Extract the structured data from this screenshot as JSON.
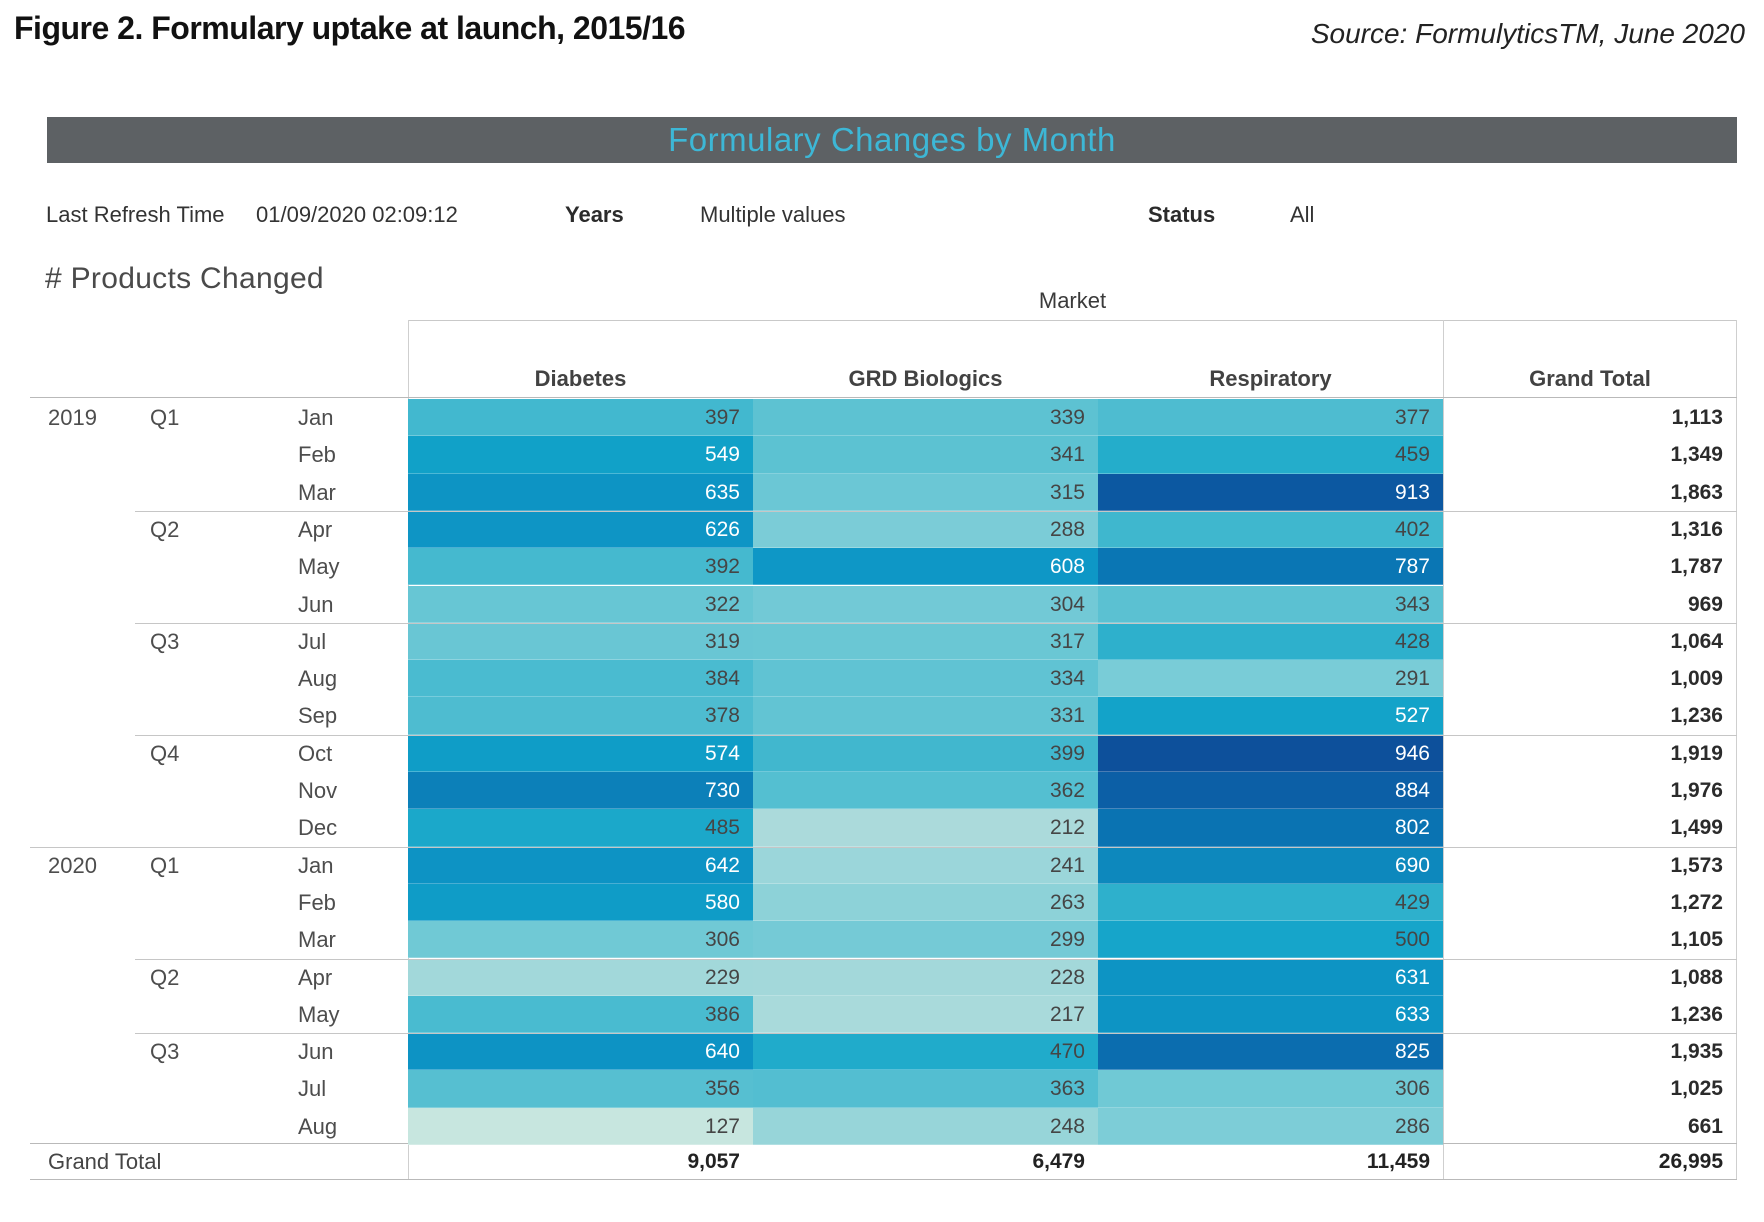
{
  "figure": {
    "title": "Figure 2. Formulary uptake at launch, 2015/16",
    "source": "Source: FormulyticsTM, June 2020"
  },
  "banner": {
    "title": "Formulary Changes by Month",
    "bg_color": "#5d6164",
    "text_color": "#3db7d6"
  },
  "filters": {
    "last_refresh_label": "Last Refresh Time",
    "last_refresh_value": "01/09/2020 02:09:12",
    "years_label": "Years",
    "years_value": "Multiple values",
    "status_label": "Status",
    "status_value": "All"
  },
  "sheet": {
    "title": "# Products Changed",
    "column_dimension_label": "Market"
  },
  "chart_data": {
    "type": "heatmap",
    "columns": [
      "Diabetes",
      "GRD Biologics",
      "Respiratory"
    ],
    "grand_total_label": "Grand Total",
    "grand_total_row_label": "Grand Total",
    "rows": [
      {
        "year": "2019",
        "quarter": "Q1",
        "month": "Jan",
        "values": [
          397,
          339,
          377
        ],
        "total": "1,113"
      },
      {
        "month": "Feb",
        "values": [
          549,
          341,
          459
        ],
        "total": "1,349"
      },
      {
        "month": "Mar",
        "values": [
          635,
          315,
          913
        ],
        "total": "1,863"
      },
      {
        "quarter": "Q2",
        "month": "Apr",
        "values": [
          626,
          288,
          402
        ],
        "total": "1,316"
      },
      {
        "month": "May",
        "values": [
          392,
          608,
          787
        ],
        "total": "1,787"
      },
      {
        "month": "Jun",
        "values": [
          322,
          304,
          343
        ],
        "total": "969"
      },
      {
        "quarter": "Q3",
        "month": "Jul",
        "values": [
          319,
          317,
          428
        ],
        "total": "1,064"
      },
      {
        "month": "Aug",
        "values": [
          384,
          334,
          291
        ],
        "total": "1,009"
      },
      {
        "month": "Sep",
        "values": [
          378,
          331,
          527
        ],
        "total": "1,236"
      },
      {
        "quarter": "Q4",
        "month": "Oct",
        "values": [
          574,
          399,
          946
        ],
        "total": "1,919"
      },
      {
        "month": "Nov",
        "values": [
          730,
          362,
          884
        ],
        "total": "1,976"
      },
      {
        "month": "Dec",
        "values": [
          485,
          212,
          802
        ],
        "total": "1,499"
      },
      {
        "year": "2020",
        "quarter": "Q1",
        "month": "Jan",
        "values": [
          642,
          241,
          690
        ],
        "total": "1,573"
      },
      {
        "month": "Feb",
        "values": [
          580,
          263,
          429
        ],
        "total": "1,272"
      },
      {
        "month": "Mar",
        "values": [
          306,
          299,
          500
        ],
        "total": "1,105"
      },
      {
        "quarter": "Q2",
        "month": "Apr",
        "values": [
          229,
          228,
          631
        ],
        "total": "1,088"
      },
      {
        "month": "May",
        "values": [
          386,
          217,
          633
        ],
        "total": "1,236"
      },
      {
        "quarter": "Q3",
        "month": "Jun",
        "values": [
          640,
          470,
          825
        ],
        "total": "1,935"
      },
      {
        "month": "Jul",
        "values": [
          356,
          363,
          306
        ],
        "total": "1,025"
      },
      {
        "month": "Aug",
        "values": [
          127,
          248,
          286
        ],
        "total": "661"
      }
    ],
    "column_totals": [
      "9,057",
      "6,479",
      "11,459"
    ],
    "grand_total": "26,995",
    "color_scale": {
      "stops": [
        [
          127,
          "#c7e6df"
        ],
        [
          215,
          "#aadadb"
        ],
        [
          250,
          "#96d5d9"
        ],
        [
          290,
          "#7accd7"
        ],
        [
          320,
          "#68c6d4"
        ],
        [
          345,
          "#5ac1d2"
        ],
        [
          380,
          "#4dbcd0"
        ],
        [
          405,
          "#3db6ce"
        ],
        [
          430,
          "#2db0cc"
        ],
        [
          465,
          "#22accb"
        ],
        [
          500,
          "#16a5ca"
        ],
        [
          560,
          "#10a0c8"
        ],
        [
          610,
          "#0e97c6"
        ],
        [
          650,
          "#0d92c3"
        ],
        [
          700,
          "#0d85bc"
        ],
        [
          745,
          "#0c7db8"
        ],
        [
          790,
          "#0a76b4"
        ],
        [
          830,
          "#0b6cae"
        ],
        [
          890,
          "#0c5da5"
        ],
        [
          950,
          "#0d4f9a"
        ]
      ],
      "dark_text": "#454545",
      "light_text": "#ffffff"
    }
  }
}
